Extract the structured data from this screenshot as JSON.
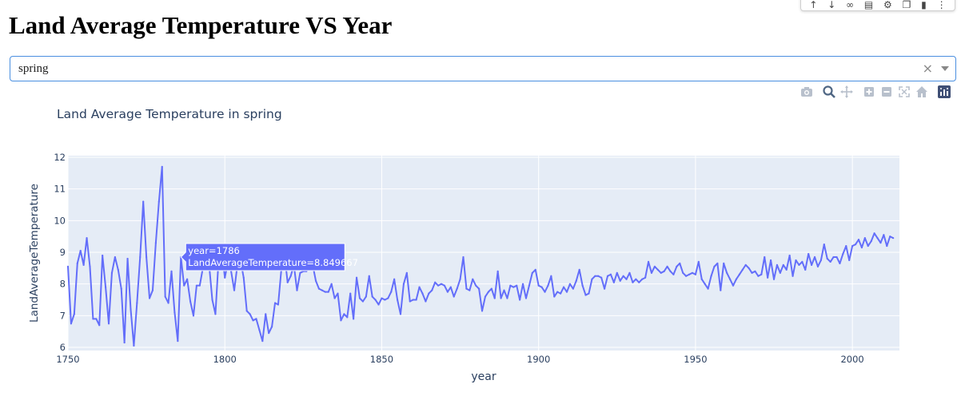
{
  "page": {
    "title": "Land Average Temperature VS Year"
  },
  "dropdown": {
    "selected": "spring",
    "clear_symbol": "×"
  },
  "top_toolbar": {
    "icons": [
      "arrow-up-icon",
      "arrow-down-icon",
      "link-icon",
      "comment-icon",
      "gear-icon",
      "copy-icon",
      "trash-icon",
      "more-icon"
    ]
  },
  "modebar": {
    "icons": [
      "camera-icon",
      "zoom-icon",
      "pan-icon",
      "zoom-in-icon",
      "zoom-out-icon",
      "autoscale-icon",
      "reset-axes-icon",
      "plotly-logo-icon"
    ]
  },
  "colors": {
    "line": "#636efa",
    "plot_bg": "#e5ecf6",
    "grid": "#ffffff",
    "text": "#2a3f5f",
    "focus_border": "#4a8fe0"
  },
  "chart_data": {
    "type": "line",
    "title": "Land Average Temperature in spring",
    "xlabel": "year",
    "ylabel": "LandAverageTemperature",
    "xlim": [
      1750,
      2015
    ],
    "ylim": [
      5.9,
      12.05
    ],
    "grid": true,
    "xticks": [
      1750,
      1800,
      1850,
      1900,
      1950,
      2000
    ],
    "yticks": [
      6,
      7,
      8,
      9,
      10,
      11,
      12
    ],
    "x_start": 1750,
    "x_step": 1,
    "values": [
      8.55,
      6.75,
      7.05,
      8.65,
      9.05,
      8.6,
      9.45,
      8.55,
      6.9,
      6.9,
      6.7,
      8.9,
      7.9,
      6.75,
      8.35,
      8.85,
      8.45,
      7.85,
      6.15,
      8.8,
      7.2,
      6.05,
      7.4,
      8.85,
      10.6,
      8.85,
      7.55,
      7.8,
      9.3,
      10.6,
      11.7,
      7.6,
      7.4,
      8.4,
      7.1,
      6.2,
      8.849667,
      7.95,
      8.15,
      7.45,
      7.0,
      7.95,
      7.95,
      8.5,
      8.8,
      8.6,
      7.5,
      7.05,
      8.75,
      9.1,
      8.2,
      8.7,
      8.4,
      7.8,
      8.6,
      8.75,
      8.2,
      7.15,
      7.05,
      6.85,
      6.9,
      6.55,
      6.2,
      7.05,
      6.45,
      6.65,
      7.4,
      7.35,
      8.45,
      8.95,
      8.05,
      8.25,
      8.6,
      7.8,
      8.35,
      8.4,
      8.4,
      8.85,
      8.6,
      8.1,
      7.85,
      7.8,
      7.75,
      7.75,
      8.0,
      7.55,
      7.7,
      6.85,
      7.05,
      6.95,
      7.7,
      6.9,
      8.2,
      7.55,
      7.45,
      7.6,
      8.25,
      7.6,
      7.5,
      7.35,
      7.55,
      7.5,
      7.55,
      7.75,
      8.15,
      7.5,
      7.05,
      8.0,
      8.35,
      7.45,
      7.5,
      7.5,
      7.9,
      7.7,
      7.45,
      7.7,
      7.8,
      8.05,
      7.95,
      8.0,
      7.95,
      7.75,
      7.9,
      7.6,
      7.85,
      8.15,
      8.85,
      7.85,
      7.8,
      8.15,
      7.95,
      7.85,
      7.15,
      7.6,
      7.75,
      7.85,
      7.55,
      8.4,
      7.55,
      7.8,
      7.55,
      7.95,
      7.9,
      7.95,
      7.5,
      8.0,
      7.55,
      7.95,
      8.35,
      8.45,
      7.95,
      7.9,
      7.75,
      7.95,
      8.25,
      7.6,
      7.75,
      7.7,
      7.9,
      7.75,
      8.0,
      7.85,
      8.1,
      8.45,
      7.95,
      7.65,
      7.7,
      8.15,
      8.25,
      8.25,
      8.2,
      7.85,
      8.25,
      8.3,
      8.05,
      8.35,
      8.1,
      8.25,
      8.15,
      8.35,
      8.05,
      8.15,
      8.05,
      8.15,
      8.2,
      8.7,
      8.35,
      8.55,
      8.45,
      8.35,
      8.4,
      8.55,
      8.4,
      8.3,
      8.55,
      8.65,
      8.35,
      8.25,
      8.3,
      8.35,
      8.3,
      8.7,
      8.15,
      8.0,
      7.85,
      8.25,
      8.55,
      8.65,
      7.8,
      8.65,
      8.35,
      8.15,
      7.95,
      8.15,
      8.3,
      8.45,
      8.6,
      8.5,
      8.35,
      8.4,
      8.25,
      8.3,
      8.85,
      8.2,
      8.75,
      8.15,
      8.6,
      8.35,
      8.6,
      8.45,
      8.9,
      8.25,
      8.75,
      8.6,
      8.7,
      8.45,
      8.95,
      8.6,
      8.85,
      8.55,
      8.75,
      9.25,
      8.8,
      8.7,
      8.85,
      8.85,
      8.65,
      8.95,
      9.2,
      8.75,
      9.2,
      9.25,
      9.4,
      9.15,
      9.45,
      9.2,
      9.35,
      9.6,
      9.45,
      9.3,
      9.55,
      9.2,
      9.5,
      9.45
    ],
    "tooltip": {
      "year": 1786,
      "value": 8.849667,
      "line1": "year=1786",
      "line2": "LandAverageTemperature=8.849667"
    }
  }
}
